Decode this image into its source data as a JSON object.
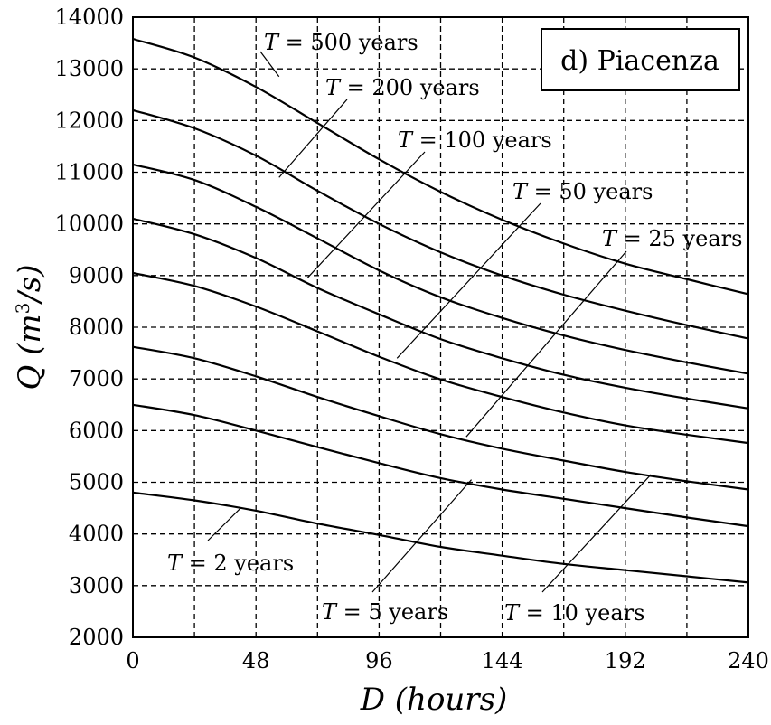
{
  "chart_data": {
    "type": "line",
    "title": "d) Piacenza",
    "xlabel_var": "D",
    "xlabel_unit": "(hours)",
    "ylabel_var": "Q",
    "ylabel_unit_prefix": "(m",
    "ylabel_unit_sup": "3",
    "ylabel_unit_suffix": "/s)",
    "xlim": [
      0,
      240
    ],
    "ylim": [
      2000,
      14000
    ],
    "x_ticks": [
      0,
      48,
      96,
      144,
      192,
      240
    ],
    "y_ticks": [
      2000,
      3000,
      4000,
      5000,
      6000,
      7000,
      8000,
      9000,
      10000,
      11000,
      12000,
      13000,
      14000
    ],
    "x_grid": [
      24,
      48,
      72,
      96,
      120,
      144,
      168,
      192,
      216
    ],
    "y_grid": [
      3000,
      4000,
      5000,
      6000,
      7000,
      8000,
      9000,
      10000,
      11000,
      12000,
      13000
    ],
    "x": [
      0,
      24,
      48,
      72,
      96,
      120,
      144,
      168,
      192,
      216,
      240
    ],
    "series": [
      {
        "name": "T = 2 years",
        "values": [
          4800,
          4650,
          4450,
          4200,
          3980,
          3750,
          3580,
          3420,
          3300,
          3180,
          3060
        ]
      },
      {
        "name": "T = 5 years",
        "values": [
          6500,
          6300,
          6000,
          5680,
          5370,
          5080,
          4860,
          4680,
          4500,
          4320,
          4150
        ]
      },
      {
        "name": "T = 10 years",
        "values": [
          7620,
          7400,
          7050,
          6650,
          6280,
          5930,
          5650,
          5420,
          5200,
          5020,
          4860
        ]
      },
      {
        "name": "T = 25 years",
        "values": [
          9050,
          8800,
          8400,
          7920,
          7430,
          6990,
          6650,
          6350,
          6100,
          5920,
          5760
        ]
      },
      {
        "name": "T = 50 years",
        "values": [
          10100,
          9800,
          9340,
          8760,
          8250,
          7770,
          7400,
          7080,
          6830,
          6620,
          6430
        ]
      },
      {
        "name": "T = 100 years",
        "values": [
          11150,
          10850,
          10330,
          9720,
          9100,
          8580,
          8180,
          7840,
          7560,
          7320,
          7100
        ]
      },
      {
        "name": "T = 200 years",
        "values": [
          12200,
          11850,
          11320,
          10640,
          10000,
          9450,
          9000,
          8630,
          8320,
          8040,
          7780
        ]
      },
      {
        "name": "T = 500 years",
        "values": [
          13580,
          13220,
          12650,
          11950,
          11250,
          10620,
          10080,
          9620,
          9230,
          8930,
          8640
        ]
      }
    ],
    "annotations": [
      {
        "var": "T",
        "rest": " = 500 years",
        "ax": 57,
        "ay": 12850
      },
      {
        "var": "T",
        "rest": " = 200 years",
        "ax": 57,
        "ay": 10900
      },
      {
        "var": "T",
        "rest": " = 100 years",
        "ax": 68,
        "ay": 8950
      },
      {
        "var": "T",
        "rest": " = 50 years",
        "ax": 103,
        "ay": 7400
      },
      {
        "var": "T",
        "rest": " = 25 years",
        "ax": 130,
        "ay": 5880
      },
      {
        "var": "T",
        "rest": " = 2 years",
        "ax": 42,
        "ay": 4500
      },
      {
        "var": "T",
        "rest": " = 5 years",
        "ax": 132,
        "ay": 5050
      },
      {
        "var": "T",
        "rest": " = 10 years",
        "ax": 202,
        "ay": 5150
      }
    ]
  }
}
